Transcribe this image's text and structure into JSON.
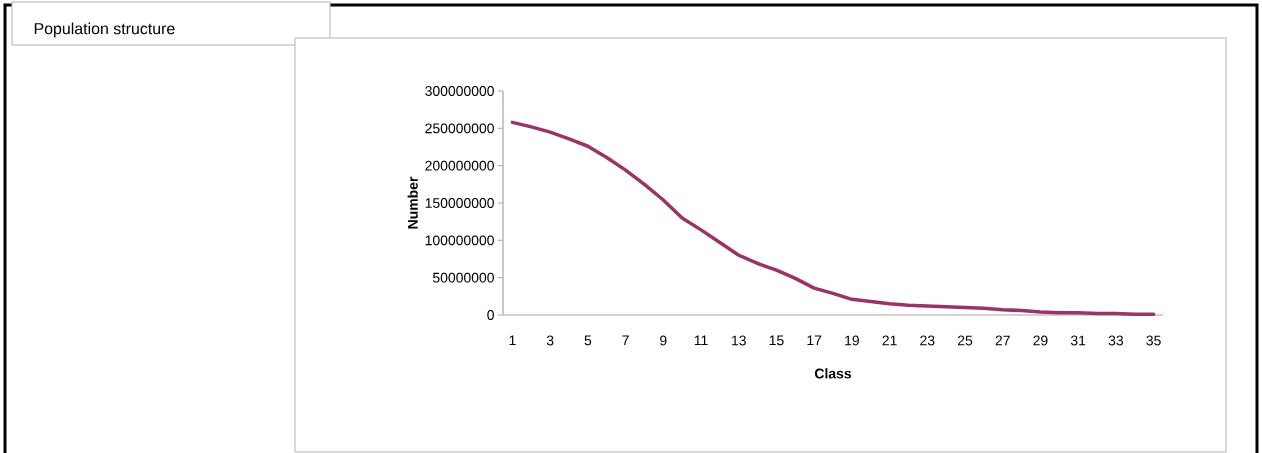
{
  "chart_data": {
    "type": "line",
    "title": "Population structure",
    "xlabel": "Class",
    "ylabel": "Number",
    "categories": [
      "1",
      null,
      "3",
      null,
      "5",
      null,
      "7",
      null,
      "9",
      null,
      "11",
      null,
      "13",
      null,
      "15",
      null,
      "17",
      null,
      "19",
      null,
      "21",
      null,
      "23",
      null,
      "25",
      null,
      "27",
      null,
      "29",
      null,
      "31",
      null,
      "33",
      null,
      "35"
    ],
    "series": [
      {
        "color": "#9a3366",
        "values": [
          258000000,
          252000000,
          245000000,
          236000000,
          226000000,
          211000000,
          194000000,
          175000000,
          154000000,
          130000000,
          114000000,
          97000000,
          80000000,
          69000000,
          60000000,
          49000000,
          36000000,
          29000000,
          21000000,
          18000000,
          15000000,
          13000000,
          12000000,
          11000000,
          10000000,
          9000000,
          7000000,
          6000000,
          4000000,
          3000000,
          3000000,
          2000000,
          2000000,
          1000000,
          1000000
        ]
      }
    ],
    "ylim": [
      0,
      300000000
    ],
    "yticks": [
      0,
      50000000,
      100000000,
      150000000,
      200000000,
      250000000,
      300000000
    ],
    "grid": false,
    "marker": "none",
    "line_style": "solid"
  }
}
